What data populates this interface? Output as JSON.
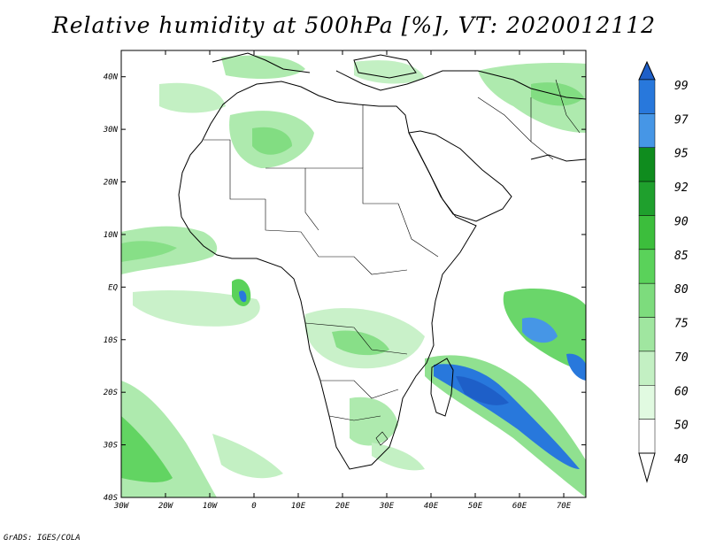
{
  "title": "Relative humidity at 500hPa [%], VT: 2020012112",
  "credit": "GrADS: IGES/COLA",
  "map": {
    "lon_range": [
      -30,
      75
    ],
    "lat_range": [
      -40,
      45
    ],
    "lon_ticks": [
      "30W",
      "20W",
      "10W",
      "0",
      "10E",
      "20E",
      "30E",
      "40E",
      "50E",
      "60E",
      "70E"
    ],
    "lat_ticks": [
      "40N",
      "30N",
      "20N",
      "10N",
      "EQ",
      "10S",
      "20S",
      "30S",
      "40S"
    ]
  },
  "colorbar": {
    "levels": [
      "99",
      "97",
      "95",
      "92",
      "90",
      "85",
      "80",
      "75",
      "70",
      "60",
      "50",
      "40"
    ],
    "colors": [
      "#1e5fc8",
      "#2878dc",
      "#4696e6",
      "#0f8c1e",
      "#1fa02d",
      "#3cbe3c",
      "#5ad25a",
      "#7ddc7d",
      "#a0e6a0",
      "#c3f0c3",
      "#e1fae1",
      "#ffffff"
    ]
  }
}
